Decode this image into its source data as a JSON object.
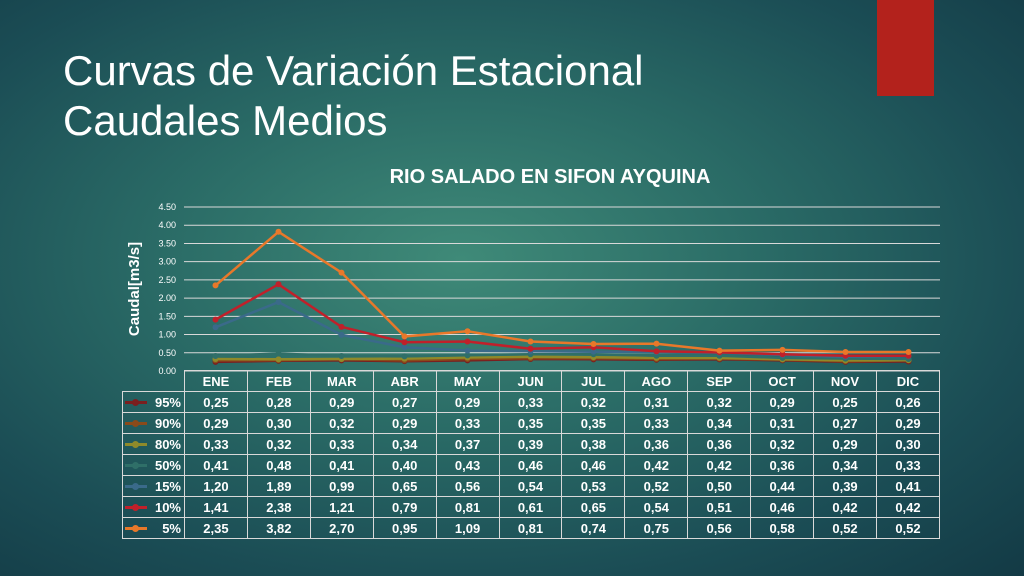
{
  "title_lines": [
    "Curvas de Variación Estacional",
    "Caudales Medios"
  ],
  "colors": {
    "accent": "#b3221c",
    "grid": "#d9d9d9"
  },
  "chart_data": {
    "type": "line",
    "title": "RIO SALADO EN SIFON AYQUINA",
    "xlabel": "",
    "ylabel": "Caudal[m3/s]",
    "ylim": [
      0,
      4.5
    ],
    "yticks": [
      "0.00",
      "0.50",
      "1.00",
      "1.50",
      "2.00",
      "2.50",
      "3.00",
      "3.50",
      "4.00",
      "4.50"
    ],
    "grid": true,
    "categories": [
      "ENE",
      "FEB",
      "MAR",
      "ABR",
      "MAY",
      "JUN",
      "JUL",
      "AGO",
      "SEP",
      "OCT",
      "NOV",
      "DIC"
    ],
    "series": [
      {
        "name": "95%",
        "color": "#7a1f1f",
        "values": [
          0.25,
          0.28,
          0.29,
          0.27,
          0.29,
          0.33,
          0.32,
          0.31,
          0.32,
          0.29,
          0.25,
          0.26
        ],
        "labels": [
          "0,25",
          "0,28",
          "0,29",
          "0,27",
          "0,29",
          "0,33",
          "0,32",
          "0,31",
          "0,32",
          "0,29",
          "0,25",
          "0,26"
        ]
      },
      {
        "name": "90%",
        "color": "#8a4a1a",
        "values": [
          0.29,
          0.3,
          0.32,
          0.29,
          0.33,
          0.35,
          0.35,
          0.33,
          0.34,
          0.31,
          0.27,
          0.29
        ],
        "labels": [
          "0,29",
          "0,30",
          "0,32",
          "0,29",
          "0,33",
          "0,35",
          "0,35",
          "0,33",
          "0,34",
          "0,31",
          "0,27",
          "0,29"
        ]
      },
      {
        "name": "80%",
        "color": "#8f8a2a",
        "values": [
          0.33,
          0.32,
          0.33,
          0.34,
          0.37,
          0.39,
          0.38,
          0.36,
          0.36,
          0.32,
          0.29,
          0.3
        ],
        "labels": [
          "0,33",
          "0,32",
          "0,33",
          "0,34",
          "0,37",
          "0,39",
          "0,38",
          "0,36",
          "0,36",
          "0,32",
          "0,29",
          "0,30"
        ]
      },
      {
        "name": "50%",
        "color": "#2f6f68",
        "values": [
          0.41,
          0.48,
          0.41,
          0.4,
          0.43,
          0.46,
          0.46,
          0.42,
          0.42,
          0.36,
          0.34,
          0.33
        ],
        "labels": [
          "0,41",
          "0,48",
          "0,41",
          "0,40",
          "0,43",
          "0,46",
          "0,46",
          "0,42",
          "0,42",
          "0,36",
          "0,34",
          "0,33"
        ]
      },
      {
        "name": "15%",
        "color": "#3a6a8a",
        "values": [
          1.2,
          1.89,
          0.99,
          0.65,
          0.56,
          0.54,
          0.53,
          0.52,
          0.5,
          0.44,
          0.39,
          0.41
        ],
        "labels": [
          "1,20",
          "1,89",
          "0,99",
          "0,65",
          "0,56",
          "0,54",
          "0,53",
          "0,52",
          "0,50",
          "0,44",
          "0,39",
          "0,41"
        ]
      },
      {
        "name": "10%",
        "color": "#c0202a",
        "values": [
          1.41,
          2.38,
          1.21,
          0.79,
          0.81,
          0.61,
          0.65,
          0.54,
          0.51,
          0.46,
          0.42,
          0.42
        ],
        "labels": [
          "1,41",
          "2,38",
          "1,21",
          "0,79",
          "0,81",
          "0,61",
          "0,65",
          "0,54",
          "0,51",
          "0,46",
          "0,42",
          "0,42"
        ]
      },
      {
        "name": "5%",
        "color": "#e8782a",
        "values": [
          2.35,
          3.82,
          2.7,
          0.95,
          1.09,
          0.81,
          0.74,
          0.75,
          0.56,
          0.58,
          0.52,
          0.52
        ],
        "labels": [
          "2,35",
          "3,82",
          "2,70",
          "0,95",
          "1,09",
          "0,81",
          "0,74",
          "0,75",
          "0,56",
          "0,58",
          "0,52",
          "0,52"
        ]
      }
    ]
  }
}
